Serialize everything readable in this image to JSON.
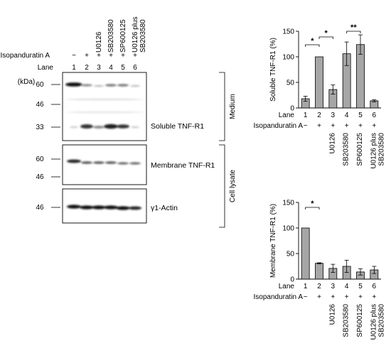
{
  "blot": {
    "treatment_label": "Isopanduratin A",
    "lane_label": "Lane",
    "kda_label": "(kDa)",
    "lanes": [
      "1",
      "2",
      "3",
      "4",
      "5",
      "6"
    ],
    "signs": [
      "−",
      "+",
      "+",
      "+",
      "+",
      "+"
    ],
    "inhibitors": [
      "",
      "",
      "U0126",
      "SB203580",
      "SP600125",
      "U0126 plus SB203580"
    ],
    "inhibitor_lines": [
      [],
      [],
      [
        "U0126"
      ],
      [
        "SB203580"
      ],
      [
        "SP600125"
      ],
      [
        "U0126 plus",
        "SB203580"
      ]
    ],
    "panels": [
      {
        "name": "Soluble TNF-R1",
        "markers": [
          "60",
          "46",
          "33"
        ]
      },
      {
        "name": "Membrane TNF-R1",
        "markers": [
          "60",
          "46"
        ]
      },
      {
        "name": "γ1-Actin",
        "markers": [
          "46"
        ]
      }
    ],
    "groups": [
      "Medium",
      "Cell lysate"
    ]
  },
  "chart_data": [
    {
      "type": "bar",
      "ylabel": "Soluble TNF-R1 (%)",
      "ylim": [
        0,
        150
      ],
      "yticks": [
        0,
        50,
        100,
        150
      ],
      "grid": false,
      "x_axis_label": "Lane",
      "treatment_label": "Isopanduratin A",
      "categories": [
        "1",
        "2",
        "3",
        "4",
        "5",
        "6"
      ],
      "signs": [
        "−",
        "+",
        "+",
        "+",
        "+",
        "+"
      ],
      "inhibitors": [
        [],
        [],
        [
          "U0126"
        ],
        [
          "SB203580"
        ],
        [
          "SP600125"
        ],
        [
          "U0126 plus",
          "SB203580"
        ]
      ],
      "values": [
        18,
        100,
        36,
        106,
        124,
        14
      ],
      "errors": [
        5,
        0,
        9,
        23,
        19,
        2
      ],
      "significance": [
        {
          "from": 0,
          "to": 1,
          "label": "*"
        },
        {
          "from": 1,
          "to": 2,
          "label": "*"
        },
        {
          "from": 3,
          "to": 4,
          "label": "**"
        }
      ]
    },
    {
      "type": "bar",
      "ylabel": "Membrane TNF-R1 (%)",
      "ylim": [
        0,
        150
      ],
      "yticks": [
        0,
        50,
        100,
        150
      ],
      "grid": false,
      "x_axis_label": "Lane",
      "treatment_label": "Isopanduratin A",
      "categories": [
        "1",
        "2",
        "3",
        "4",
        "5",
        "6"
      ],
      "signs": [
        "−",
        "+",
        "+",
        "+",
        "+",
        "+"
      ],
      "inhibitors": [
        [],
        [],
        [
          "U0126"
        ],
        [
          "SB203580"
        ],
        [
          "SP600125"
        ],
        [
          "U0126 plus",
          "SB203580"
        ]
      ],
      "values": [
        100,
        31,
        21,
        25,
        14,
        18
      ],
      "errors": [
        0,
        1,
        8,
        12,
        6,
        7
      ],
      "significance": [
        {
          "from": 0,
          "to": 1,
          "label": "*"
        }
      ]
    }
  ]
}
